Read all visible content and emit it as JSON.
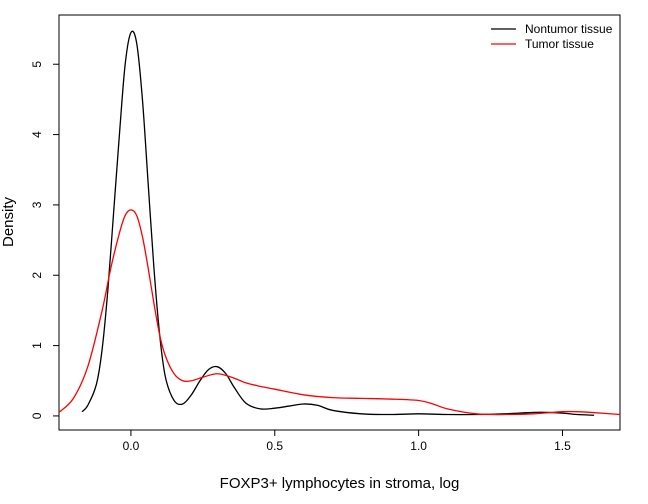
{
  "chart_data": {
    "type": "line",
    "title": "",
    "xlabel": "FOXP3+ lymphocytes in stroma, log",
    "ylabel": "Density",
    "xlim": [
      -0.25,
      1.7
    ],
    "ylim": [
      -0.2,
      5.7
    ],
    "x_ticks": [
      0.0,
      0.5,
      1.0,
      1.5
    ],
    "x_tick_labels": [
      "0.0",
      "0.5",
      "1.0",
      "1.5"
    ],
    "y_ticks": [
      0,
      1,
      2,
      3,
      4,
      5
    ],
    "y_tick_labels": [
      "0",
      "1",
      "2",
      "3",
      "4",
      "5"
    ],
    "grid": false,
    "legend_position": "top-right",
    "series": [
      {
        "name": "Nontumor tissue",
        "color": "#000000",
        "x": [
          -0.17,
          -0.15,
          -0.12,
          -0.1,
          -0.08,
          -0.06,
          -0.04,
          -0.02,
          0.0,
          0.02,
          0.04,
          0.06,
          0.08,
          0.1,
          0.12,
          0.15,
          0.18,
          0.21,
          0.24,
          0.27,
          0.3,
          0.33,
          0.36,
          0.4,
          0.45,
          0.5,
          0.55,
          0.6,
          0.65,
          0.7,
          0.8,
          0.9,
          1.0,
          1.1,
          1.2,
          1.3,
          1.4,
          1.45,
          1.5,
          1.55,
          1.61
        ],
        "y": [
          0.06,
          0.15,
          0.45,
          0.95,
          1.8,
          2.9,
          4.0,
          5.0,
          5.45,
          5.3,
          4.5,
          3.3,
          2.1,
          1.15,
          0.55,
          0.22,
          0.17,
          0.3,
          0.5,
          0.66,
          0.7,
          0.6,
          0.4,
          0.18,
          0.1,
          0.11,
          0.14,
          0.17,
          0.15,
          0.08,
          0.03,
          0.02,
          0.03,
          0.02,
          0.02,
          0.03,
          0.05,
          0.05,
          0.04,
          0.02,
          0.01
        ]
      },
      {
        "name": "Tumor tissue",
        "color": "#ff0000",
        "x": [
          -0.25,
          -0.2,
          -0.15,
          -0.1,
          -0.07,
          -0.04,
          -0.02,
          0.0,
          0.02,
          0.04,
          0.06,
          0.08,
          0.1,
          0.12,
          0.15,
          0.18,
          0.21,
          0.25,
          0.3,
          0.35,
          0.4,
          0.45,
          0.5,
          0.6,
          0.7,
          0.8,
          0.9,
          1.0,
          1.05,
          1.1,
          1.2,
          1.3,
          1.4,
          1.5,
          1.55,
          1.6,
          1.7
        ],
        "y": [
          0.05,
          0.25,
          0.7,
          1.5,
          2.1,
          2.6,
          2.85,
          2.93,
          2.85,
          2.55,
          2.1,
          1.6,
          1.15,
          0.85,
          0.6,
          0.5,
          0.5,
          0.55,
          0.6,
          0.55,
          0.47,
          0.42,
          0.38,
          0.3,
          0.26,
          0.25,
          0.24,
          0.22,
          0.17,
          0.1,
          0.03,
          0.02,
          0.03,
          0.06,
          0.06,
          0.05,
          0.02
        ]
      }
    ]
  }
}
